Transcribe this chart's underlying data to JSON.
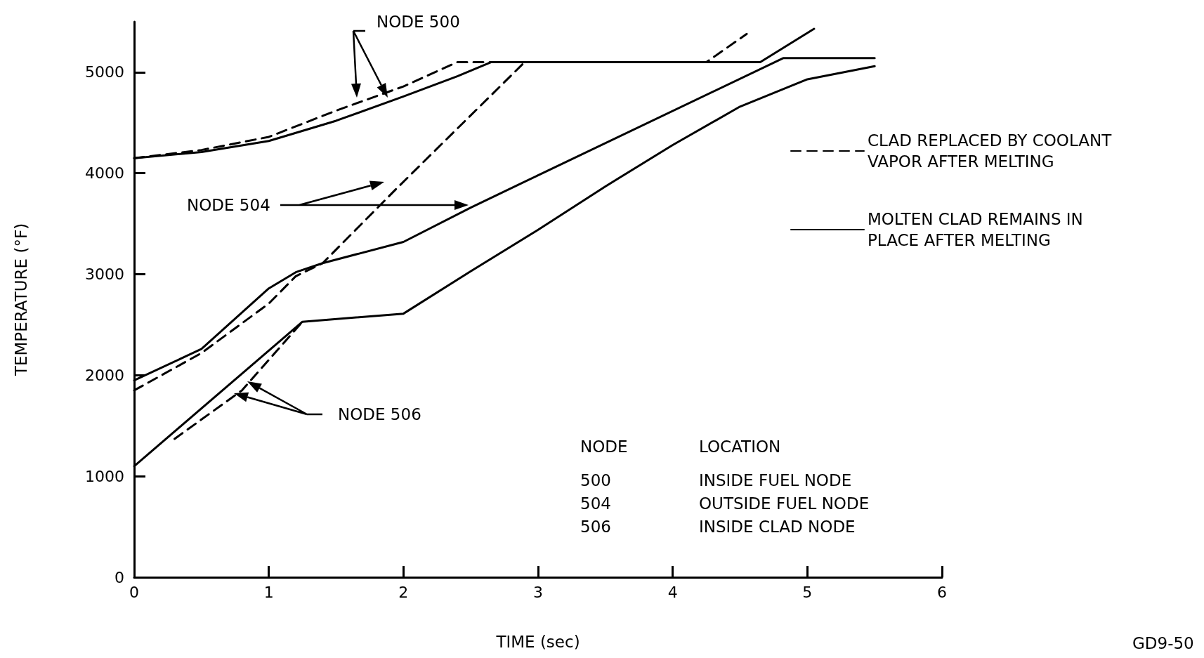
{
  "chart_data": {
    "type": "line",
    "xlabel": "TIME (sec)",
    "ylabel": "TEMPERATURE (°F)",
    "xlim": [
      0,
      6
    ],
    "xticks": [
      0,
      1,
      2,
      3,
      4,
      5,
      6
    ],
    "ylim": [
      0,
      5500
    ],
    "yticks": [
      0,
      1000,
      2000,
      3000,
      4000,
      5000
    ],
    "grid": false,
    "legend": "right",
    "marker": "none",
    "series": [
      {
        "name": "CLAD REPLACED BY COOLANT VAPOR AFTER MELTING",
        "color": "#000000",
        "line_style": "dashed",
        "x": [
          0,
          0.5,
          1,
          1.5,
          2,
          2.4,
          4.25,
          4.55
        ],
        "values": [
          4150,
          4230,
          4360,
          4620,
          4860,
          5100,
          5100,
          5380
        ]
      },
      {
        "name": "MOLTEN CLAD REMAINS IN PLACE AFTER MELTING",
        "color": "#000000",
        "line_style": "solid",
        "x": [
          0,
          0.5,
          1,
          1.5,
          2,
          2.4,
          2.65,
          4.65,
          5.05
        ],
        "values": [
          4150,
          4210,
          4320,
          4520,
          4760,
          4960,
          5100,
          5100,
          5430
        ]
      },
      {
        "color": "#000000",
        "line_style": "dashed",
        "x": [
          0,
          0.5,
          1,
          1.2,
          1.4,
          1.95,
          2.9
        ],
        "values": [
          1850,
          2220,
          2710,
          2980,
          3110,
          3850,
          5100
        ]
      },
      {
        "color": "#000000",
        "line_style": "solid",
        "x": [
          0,
          0.5,
          1,
          1.2,
          1.4,
          2,
          2.5,
          3,
          4.82,
          5.5
        ],
        "values": [
          1950,
          2260,
          2860,
          3020,
          3110,
          3320,
          3660,
          3980,
          5140,
          5140
        ]
      },
      {
        "color": "#000000",
        "line_style": "dashed",
        "x": [
          0.3,
          0.8,
          1.25
        ],
        "values": [
          1370,
          1850,
          2530
        ]
      },
      {
        "color": "#000000",
        "line_style": "solid",
        "x": [
          0,
          1.25,
          2,
          2.5,
          3,
          3.5,
          4,
          4.5,
          5,
          5.5
        ],
        "values": [
          1100,
          2530,
          2610,
          3030,
          3440,
          3870,
          4280,
          4660,
          4930,
          5060
        ]
      }
    ],
    "annotations": [
      "NODE 500",
      "NODE 504",
      "NODE 506",
      "NODE",
      "LOCATION",
      "500",
      "INSIDE FUEL NODE",
      "504",
      "OUTSIDE FUEL NODE",
      "506",
      "INSIDE CLAD NODE",
      "GD9-50"
    ]
  }
}
